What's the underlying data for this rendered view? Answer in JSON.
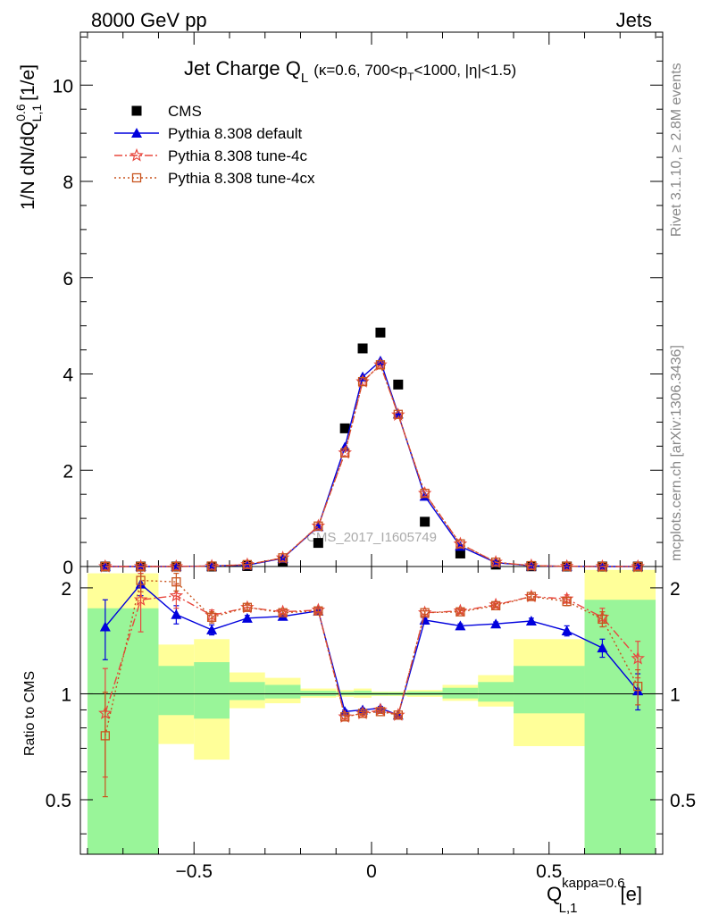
{
  "header": {
    "left": "8000 GeV pp",
    "right": "Jets"
  },
  "side_labels": {
    "rivet": "Rivet 3.1.10, ≥ 2.8M events",
    "mcplots": "mcplots.cern.ch [arXiv:1306.3436]"
  },
  "watermark": "CMS_2017_I1605749",
  "colors": {
    "cms": "#000000",
    "default": "#0000dd",
    "tune4c": "#e8483f",
    "tune4cx": "#c8541e",
    "band_green": "#99f599",
    "band_yellow": "#ffff99"
  },
  "chart_data": [
    {
      "type": "scatter",
      "panel": "main",
      "title_main": "Jet Charge Q",
      "title_sub": "L",
      "title_params": "(κ=0.6, 700<p",
      "title_params_sub": "T",
      "title_params_end": "<1000, |η|<1.5)",
      "ylabel": "1/N dN/dQ",
      "ylabel_sup": "0.6",
      "ylabel_sub": "L,1",
      "ylabel_unit": "[1/e]",
      "xlim": [
        -0.82,
        0.82
      ],
      "ylim": [
        0,
        11.1
      ],
      "yticks": [
        "0",
        "2",
        "4",
        "6",
        "8",
        "10"
      ],
      "grid": false,
      "legend_position": "top-left",
      "x": [
        -0.75,
        -0.65,
        -0.55,
        -0.45,
        -0.35,
        -0.25,
        -0.15,
        -0.075,
        -0.025,
        0.025,
        0.075,
        0.15,
        0.25,
        0.35,
        0.45,
        0.55,
        0.65,
        0.75
      ],
      "series": [
        {
          "name": "CMS",
          "key": "cms",
          "marker": "square",
          "values": [
            0.0,
            0.0,
            0.0,
            0.0,
            0.01,
            0.1,
            0.49,
            2.87,
            4.53,
            4.86,
            3.78,
            0.93,
            0.27,
            0.04,
            0.005,
            0.001,
            0.0,
            0.0
          ]
        },
        {
          "name": "Pythia 8.308 default",
          "key": "default",
          "marker": "triangle",
          "dash": "",
          "values": [
            0.0,
            0.0,
            0.0,
            0.01,
            0.03,
            0.17,
            0.83,
            2.48,
            3.94,
            4.27,
            3.17,
            1.46,
            0.42,
            0.08,
            0.015,
            0.003,
            0.0,
            0.0
          ]
        },
        {
          "name": "Pythia 8.308 tune-4c",
          "key": "tune4c",
          "marker": "star",
          "dash": "9,3,2,3",
          "values": [
            0.0,
            0.0,
            0.0,
            0.01,
            0.04,
            0.18,
            0.84,
            2.36,
            3.84,
            4.19,
            3.15,
            1.52,
            0.47,
            0.09,
            0.018,
            0.004,
            0.0,
            0.0
          ]
        },
        {
          "name": "Pythia 8.308 tune-4cx",
          "key": "tune4cx",
          "marker": "opensquare",
          "dash": "2,3",
          "values": [
            0.0,
            0.0,
            0.0,
            0.01,
            0.04,
            0.18,
            0.84,
            2.36,
            3.84,
            4.19,
            3.16,
            1.52,
            0.47,
            0.09,
            0.018,
            0.004,
            0.0,
            0.0
          ]
        }
      ]
    },
    {
      "type": "line",
      "panel": "ratio",
      "ylabel": "Ratio to CMS",
      "xlabel": "Q",
      "xlabel_sup": "kappa=0.6",
      "xlabel_sub": "L,1",
      "xlabel_unit": "[e]",
      "scale": "log",
      "ylim": [
        0.35,
        2.3
      ],
      "yticks": [
        "0.5",
        "1",
        "2"
      ],
      "xlim": [
        -0.82,
        0.82
      ],
      "xticks": [
        "−0.5",
        "0",
        "0.5"
      ],
      "reference_line": 1,
      "bands": [
        {
          "x": [
            -0.8,
            -0.6
          ],
          "green": [
            0.35,
            1.75
          ],
          "yellow": [
            0.35,
            2.2
          ]
        },
        {
          "x": [
            -0.6,
            -0.5
          ],
          "green": [
            0.87,
            1.2
          ],
          "yellow": [
            0.72,
            1.38
          ]
        },
        {
          "x": [
            -0.5,
            -0.4
          ],
          "green": [
            0.85,
            1.23
          ],
          "yellow": [
            0.65,
            1.43
          ]
        },
        {
          "x": [
            -0.4,
            -0.3
          ],
          "green": [
            0.96,
            1.08
          ],
          "yellow": [
            0.91,
            1.15
          ]
        },
        {
          "x": [
            -0.3,
            -0.2
          ],
          "green": [
            0.97,
            1.06
          ],
          "yellow": [
            0.94,
            1.11
          ]
        },
        {
          "x": [
            -0.2,
            -0.1
          ],
          "green": [
            0.985,
            1.02
          ],
          "yellow": [
            0.975,
            1.035
          ]
        },
        {
          "x": [
            -0.1,
            -0.05
          ],
          "green": [
            0.99,
            1.015
          ],
          "yellow": [
            0.98,
            1.025
          ]
        },
        {
          "x": [
            -0.05,
            0.0
          ],
          "green": [
            0.99,
            1.02
          ],
          "yellow": [
            0.975,
            1.035
          ]
        },
        {
          "x": [
            0.0,
            0.05
          ],
          "green": [
            0.99,
            1.01
          ],
          "yellow": [
            0.985,
            1.015
          ]
        },
        {
          "x": [
            0.05,
            0.1
          ],
          "green": [
            0.99,
            1.01
          ],
          "yellow": [
            0.985,
            1.015
          ]
        },
        {
          "x": [
            0.1,
            0.2
          ],
          "green": [
            0.99,
            1.015
          ],
          "yellow": [
            0.98,
            1.025
          ]
        },
        {
          "x": [
            0.2,
            0.3
          ],
          "green": [
            0.97,
            1.04
          ],
          "yellow": [
            0.955,
            1.06
          ]
        },
        {
          "x": [
            0.3,
            0.4
          ],
          "green": [
            0.95,
            1.08
          ],
          "yellow": [
            0.92,
            1.13
          ]
        },
        {
          "x": [
            0.4,
            0.6
          ],
          "green": [
            0.88,
            1.2
          ],
          "yellow": [
            0.71,
            1.43
          ]
        },
        {
          "x": [
            0.6,
            0.8
          ],
          "green": [
            0.35,
            1.85
          ],
          "yellow": [
            0.35,
            2.25
          ]
        }
      ],
      "x": [
        -0.75,
        -0.65,
        -0.55,
        -0.45,
        -0.35,
        -0.25,
        -0.15,
        -0.075,
        -0.025,
        0.025,
        0.075,
        0.15,
        0.25,
        0.35,
        0.45,
        0.55,
        0.65,
        0.75
      ],
      "series": [
        {
          "key": "default",
          "marker": "triangle",
          "dash": "",
          "values": [
            1.55,
            2.05,
            1.68,
            1.52,
            1.64,
            1.66,
            1.72,
            0.89,
            0.9,
            0.91,
            0.87,
            1.62,
            1.56,
            1.58,
            1.61,
            1.51,
            1.35,
            1.02
          ],
          "errors": [
            0.3,
            0.15,
            0.1,
            0.05,
            0.03,
            0.02,
            0.02,
            0.01,
            0.01,
            0.01,
            0.01,
            0.02,
            0.02,
            0.02,
            0.03,
            0.05,
            0.08,
            0.12
          ]
        },
        {
          "key": "tune4c",
          "marker": "star",
          "dash": "9,3,2,3",
          "values": [
            0.88,
            1.85,
            1.9,
            1.67,
            1.76,
            1.71,
            1.73,
            0.86,
            0.88,
            0.9,
            0.87,
            1.7,
            1.72,
            1.79,
            1.89,
            1.86,
            1.65,
            1.26
          ],
          "errors": [
            0.3,
            0.35,
            0.15,
            0.06,
            0.03,
            0.02,
            0.02,
            0.01,
            0.01,
            0.01,
            0.01,
            0.02,
            0.02,
            0.02,
            0.03,
            0.05,
            0.1,
            0.15
          ]
        },
        {
          "key": "tune4cx",
          "marker": "opensquare",
          "dash": "2,3",
          "values": [
            0.76,
            2.1,
            2.08,
            1.65,
            1.76,
            1.7,
            1.72,
            0.86,
            0.88,
            0.89,
            0.87,
            1.7,
            1.71,
            1.78,
            1.89,
            1.83,
            1.63,
            1.05
          ],
          "errors": [
            0.25,
            0.15,
            0.12,
            0.06,
            0.03,
            0.02,
            0.02,
            0.01,
            0.01,
            0.01,
            0.01,
            0.02,
            0.02,
            0.02,
            0.03,
            0.05,
            0.08,
            0.12
          ]
        }
      ]
    }
  ]
}
